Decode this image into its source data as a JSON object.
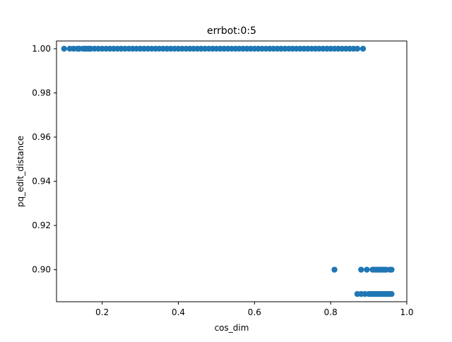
{
  "chart_data": {
    "type": "scatter",
    "title": "errbot:0:5",
    "xlabel": "cos_dim",
    "ylabel": "pq_edit_distance",
    "xlim": [
      0.08,
      1.0
    ],
    "ylim": [
      0.8855,
      1.0035
    ],
    "xticks": [
      0.2,
      0.4,
      0.6,
      0.8,
      1.0
    ],
    "xtick_labels": [
      "0.2",
      "0.4",
      "0.6",
      "0.8",
      "1.0"
    ],
    "yticks": [
      0.9,
      0.92,
      0.94,
      0.96,
      0.98,
      1.0
    ],
    "ytick_labels": [
      "0.90",
      "0.92",
      "0.94",
      "0.96",
      "0.98",
      "1.00"
    ],
    "grid": false,
    "legend": "none",
    "marker_color": "#1f77b4",
    "series": [
      {
        "x": [
          0.1,
          0.115,
          0.125,
          0.135,
          0.14,
          0.15,
          0.155,
          0.16,
          0.165,
          0.17,
          0.18,
          0.19,
          0.2,
          0.21,
          0.22,
          0.23,
          0.24,
          0.25,
          0.26,
          0.27,
          0.28,
          0.29,
          0.3,
          0.31,
          0.32,
          0.33,
          0.34,
          0.35,
          0.36,
          0.37,
          0.38,
          0.39,
          0.4,
          0.41,
          0.42,
          0.43,
          0.44,
          0.45,
          0.46,
          0.47,
          0.48,
          0.49,
          0.5,
          0.51,
          0.52,
          0.53,
          0.54,
          0.55,
          0.56,
          0.57,
          0.58,
          0.59,
          0.6,
          0.61,
          0.62,
          0.63,
          0.64,
          0.65,
          0.66,
          0.67,
          0.68,
          0.69,
          0.7,
          0.71,
          0.72,
          0.73,
          0.74,
          0.75,
          0.76,
          0.77,
          0.78,
          0.79,
          0.8,
          0.81,
          0.82,
          0.83,
          0.84,
          0.85,
          0.86,
          0.87,
          0.885,
          0.81,
          0.88,
          0.895,
          0.91,
          0.915,
          0.92,
          0.925,
          0.93,
          0.935,
          0.94,
          0.945,
          0.955,
          0.96,
          0.87,
          0.88,
          0.89,
          0.9,
          0.905,
          0.91,
          0.915,
          0.92,
          0.925,
          0.93,
          0.935,
          0.94,
          0.945,
          0.95,
          0.955,
          0.96
        ],
        "y": [
          1,
          1,
          1,
          1,
          1,
          1,
          1,
          1,
          1,
          1,
          1,
          1,
          1,
          1,
          1,
          1,
          1,
          1,
          1,
          1,
          1,
          1,
          1,
          1,
          1,
          1,
          1,
          1,
          1,
          1,
          1,
          1,
          1,
          1,
          1,
          1,
          1,
          1,
          1,
          1,
          1,
          1,
          1,
          1,
          1,
          1,
          1,
          1,
          1,
          1,
          1,
          1,
          1,
          1,
          1,
          1,
          1,
          1,
          1,
          1,
          1,
          1,
          1,
          1,
          1,
          1,
          1,
          1,
          1,
          1,
          1,
          1,
          1,
          1,
          1,
          1,
          1,
          1,
          1,
          1,
          1,
          0.9,
          0.9,
          0.9,
          0.9,
          0.9,
          0.9,
          0.9,
          0.9,
          0.9,
          0.9,
          0.9,
          0.9,
          0.9,
          0.889,
          0.889,
          0.889,
          0.889,
          0.889,
          0.889,
          0.889,
          0.889,
          0.889,
          0.889,
          0.889,
          0.889,
          0.889,
          0.889,
          0.889,
          0.889
        ]
      }
    ]
  }
}
